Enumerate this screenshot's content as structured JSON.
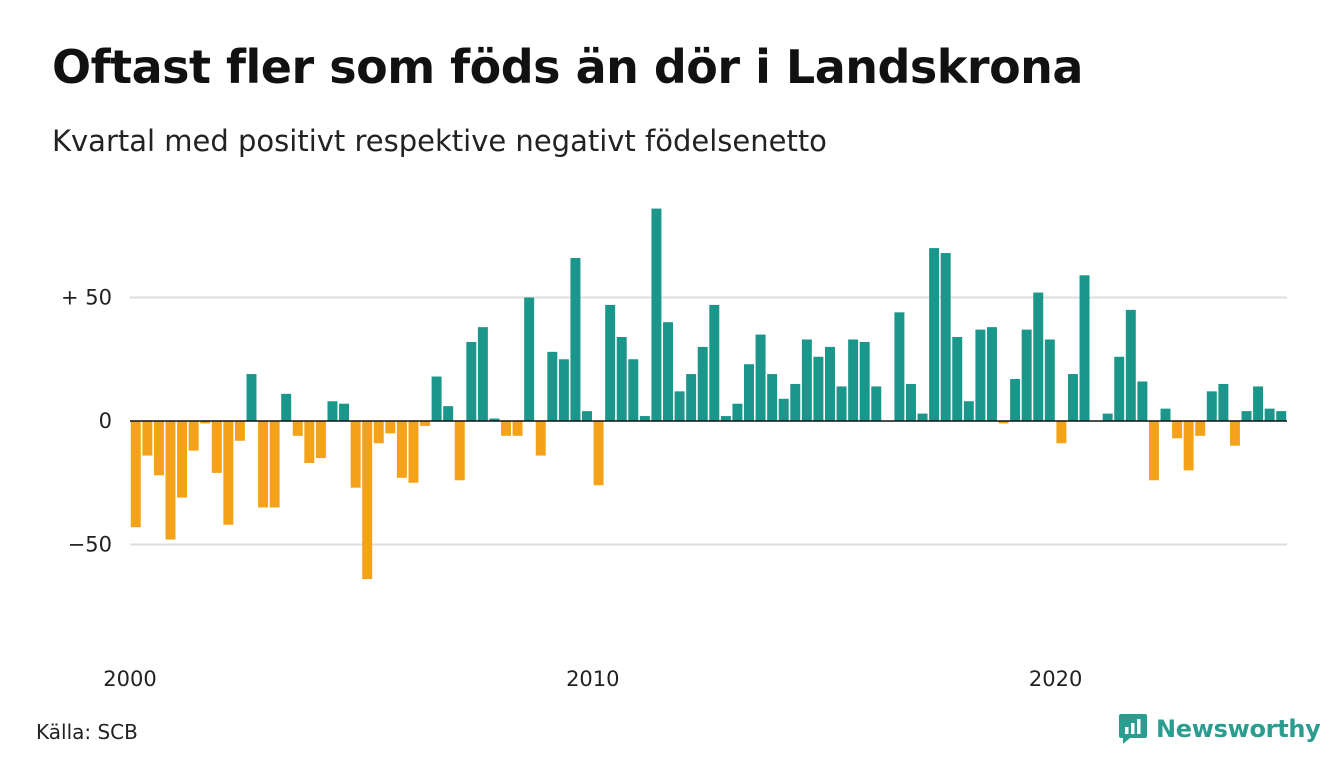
{
  "title": "Oftast fler som föds än dör i Landskrona",
  "subtitle": "Kvartal med positivt respektive negativt födelsenetto",
  "source": "Källa: SCB",
  "brand": {
    "name": "Newsworthy",
    "icon": "newsworthy-logo-icon"
  },
  "colors": {
    "positive": "#1a968a",
    "negative": "#f5a21b",
    "grid": "#dddddd",
    "axis": "#111111",
    "brand": "#2a9d8f"
  },
  "chart_data": {
    "type": "bar",
    "title": "Oftast fler som föds än dör i Landskrona",
    "xlabel": "",
    "ylabel": "",
    "ylim": [
      -80,
      90
    ],
    "yticks": [
      {
        "value": 50,
        "label": "+ 50"
      },
      {
        "value": 0,
        "label": "0"
      },
      {
        "value": -50,
        "label": "−50"
      }
    ],
    "xticks": [
      {
        "value": 2000,
        "label": "2000"
      },
      {
        "value": 2010,
        "label": "2010"
      },
      {
        "value": 2020,
        "label": "2020"
      }
    ],
    "grid": true,
    "legend": "none",
    "x_start": 2000.0,
    "x_step": 0.25,
    "values": [
      -43,
      -14,
      -22,
      -48,
      -31,
      -12,
      -1,
      -21,
      -42,
      -8,
      19,
      -35,
      -35,
      11,
      -6,
      -17,
      -15,
      8,
      7,
      -27,
      -64,
      -9,
      -5,
      -23,
      -25,
      -2,
      18,
      6,
      -24,
      32,
      38,
      1,
      -6,
      -6,
      50,
      -14,
      28,
      25,
      66,
      4,
      -26,
      47,
      34,
      25,
      2,
      86,
      40,
      12,
      19,
      30,
      47,
      2,
      7,
      23,
      35,
      19,
      9,
      15,
      33,
      26,
      30,
      14,
      33,
      32,
      14,
      0,
      44,
      15,
      3,
      70,
      68,
      34,
      8,
      37,
      38,
      -1,
      17,
      37,
      52,
      33,
      -9,
      19,
      59,
      0,
      3,
      26,
      45,
      16,
      -24,
      5,
      -7,
      -20,
      -6,
      12,
      15,
      -10,
      4,
      14,
      5,
      4
    ]
  }
}
